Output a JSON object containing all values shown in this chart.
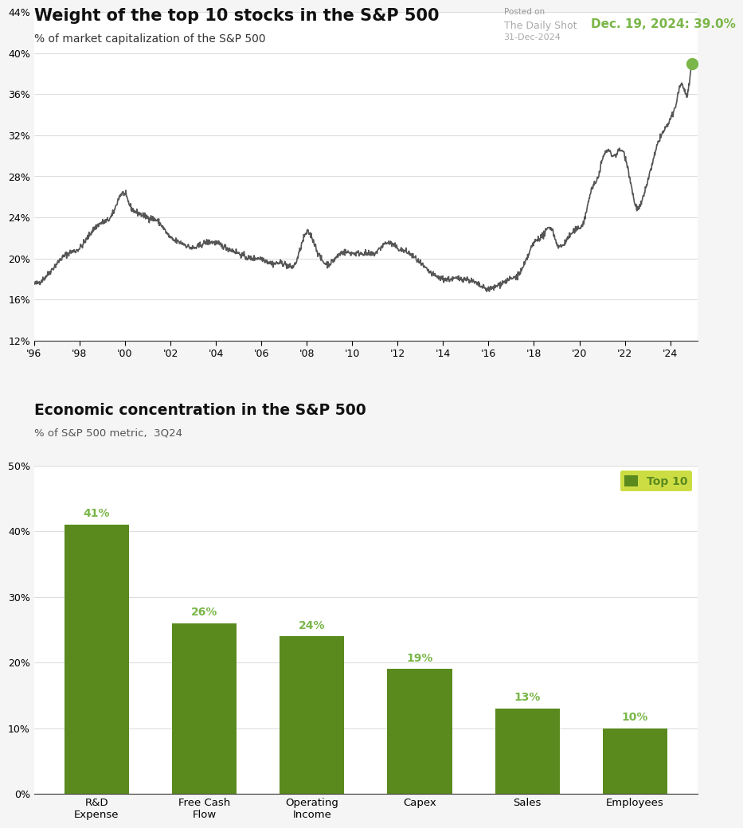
{
  "title1": "Weight of the top 10 stocks in the S&P 500",
  "subtitle1": "% of market capitalization of the S&P 500",
  "posted_on": "Posted on",
  "source": "The Daily Shot",
  "date_source": "31-Dec-2024",
  "annotation_text": "Dec. 19, 2024: 39.0%",
  "annotation_color": "#7ab648",
  "line_color": "#555555",
  "dot_color": "#7ab648",
  "bg_color": "#f5f5f5",
  "plot_bg_color": "#ffffff",
  "title2": "Economic concentration in the S&P 500",
  "subtitle2": "% of S&P 500 metric,  3Q24",
  "bar_categories": [
    "R&D\nExpense",
    "Free Cash\nFlow",
    "Operating\nIncome",
    "Capex",
    "Sales",
    "Employees"
  ],
  "bar_values": [
    41,
    26,
    24,
    19,
    13,
    10
  ],
  "bar_color": "#5a8a1e",
  "bar_label_color": "#7ab648",
  "legend_label": "Top 10",
  "legend_bg": "#ccdd44",
  "ylim1_min": 12,
  "ylim1_max": 44,
  "yticks1": [
    12,
    16,
    20,
    24,
    28,
    32,
    36,
    40,
    44
  ],
  "ylim2_min": 0,
  "ylim2_max": 50,
  "yticks2": [
    0,
    10,
    20,
    30,
    40,
    50
  ],
  "xtick_years": [
    1996,
    1998,
    2000,
    2002,
    2004,
    2006,
    2008,
    2010,
    2012,
    2014,
    2016,
    2018,
    2020,
    2022,
    2024
  ],
  "xtick_labels": [
    "'96",
    "'98",
    "'00",
    "'02",
    "'04",
    "'06",
    "'08",
    "'10",
    "'12",
    "'14",
    "'16",
    "'18",
    "'20",
    "'22",
    "'24"
  ]
}
